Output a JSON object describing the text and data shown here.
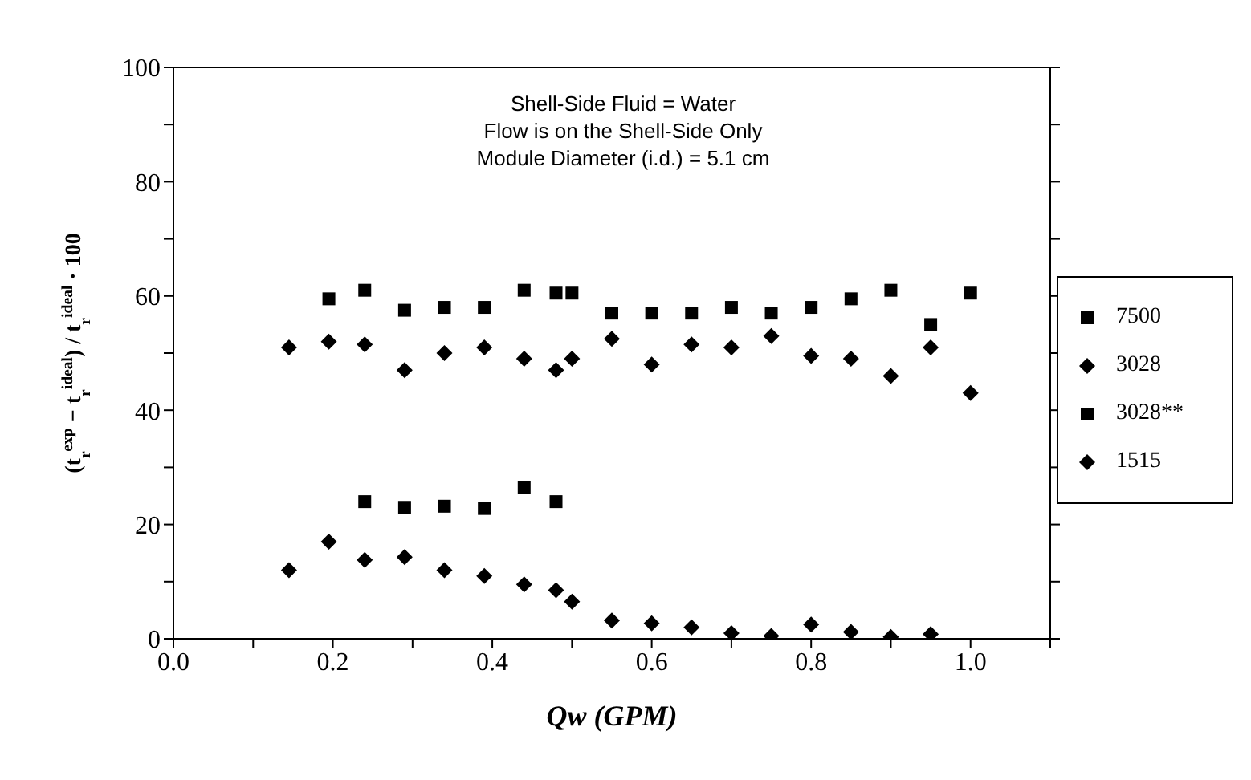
{
  "chart_data": {
    "type": "scatter",
    "xlabel": "Qw  (GPM)",
    "ylabel": "(t$_{r}$$^{exp}$ − t$_{r}$$^{ideal}$) / t$_{r}$$^{ideal}$ · 100",
    "annotations": [
      "Shell-Side Fluid = Water",
      "Flow is on the Shell-Side Only",
      "Module Diameter (i.d.) = 5.1 cm"
    ],
    "xlim": [
      0,
      1.1
    ],
    "xticks": [
      {
        "value": 0,
        "label": "0.0"
      },
      {
        "value": 0.1,
        "label": null
      },
      {
        "value": 0.2,
        "label": "0.2"
      },
      {
        "value": 0.3,
        "label": null
      },
      {
        "value": 0.4,
        "label": "0.4"
      },
      {
        "value": 0.5,
        "label": null
      },
      {
        "value": 0.6,
        "label": "0.6"
      },
      {
        "value": 0.7,
        "label": null
      },
      {
        "value": 0.8,
        "label": "0.8"
      },
      {
        "value": 0.9,
        "label": null
      },
      {
        "value": 1.0,
        "label": "1.0"
      },
      {
        "value": 1.1,
        "label": null
      }
    ],
    "ylim": [
      0,
      100
    ],
    "yticks": [
      0,
      {
        "value": 10,
        "label": null
      },
      20,
      {
        "value": 30,
        "label": null
      },
      40,
      {
        "value": 50,
        "label": null
      },
      60,
      {
        "value": 70,
        "label": null
      },
      80,
      {
        "value": 90,
        "label": null
      },
      100
    ],
    "legend": "right",
    "series": [
      {
        "name": "7500",
        "color": "#000000",
        "marker": "square",
        "x": [
          0.195,
          0.24,
          0.29,
          0.34,
          0.39,
          0.44,
          0.48,
          0.5,
          0.55,
          0.6,
          0.65,
          0.7,
          0.75,
          0.8,
          0.85,
          0.9,
          0.95,
          1.0
        ],
        "values": [
          59.5,
          61,
          57.5,
          58,
          58,
          61,
          60.5,
          60.5,
          57,
          57,
          57,
          58,
          57,
          58,
          59.5,
          61,
          55,
          60.5
        ]
      },
      {
        "name": "3028",
        "color": "#000000",
        "marker": "diamond",
        "x": [
          0.145,
          0.195,
          0.24,
          0.29,
          0.34,
          0.39,
          0.44,
          0.48,
          0.5,
          0.55,
          0.6,
          0.65,
          0.7,
          0.75,
          0.8,
          0.85,
          0.9,
          0.95,
          1.0
        ],
        "values": [
          51,
          52,
          51.5,
          47,
          50,
          51,
          49,
          47,
          49,
          52.5,
          48,
          51.5,
          51,
          53,
          49.5,
          49,
          46,
          51,
          43
        ]
      },
      {
        "name": "3028**",
        "color": "#000000",
        "marker": "square",
        "x": [
          0.24,
          0.29,
          0.34,
          0.39,
          0.44,
          0.48
        ],
        "values": [
          24,
          23,
          23.2,
          22.8,
          26.5,
          24
        ]
      },
      {
        "name": "1515",
        "color": "#000000",
        "marker": "diamond",
        "x": [
          0.145,
          0.195,
          0.24,
          0.29,
          0.34,
          0.39,
          0.44,
          0.48,
          0.5,
          0.55,
          0.6,
          0.65,
          0.7,
          0.75,
          0.8,
          0.85,
          0.9,
          0.95
        ],
        "values": [
          12,
          17,
          13.8,
          14.3,
          12,
          11,
          9.5,
          8.5,
          6.5,
          3.2,
          2.7,
          2,
          1,
          0.5,
          2.5,
          1.2,
          0.3,
          0.8
        ]
      }
    ]
  }
}
